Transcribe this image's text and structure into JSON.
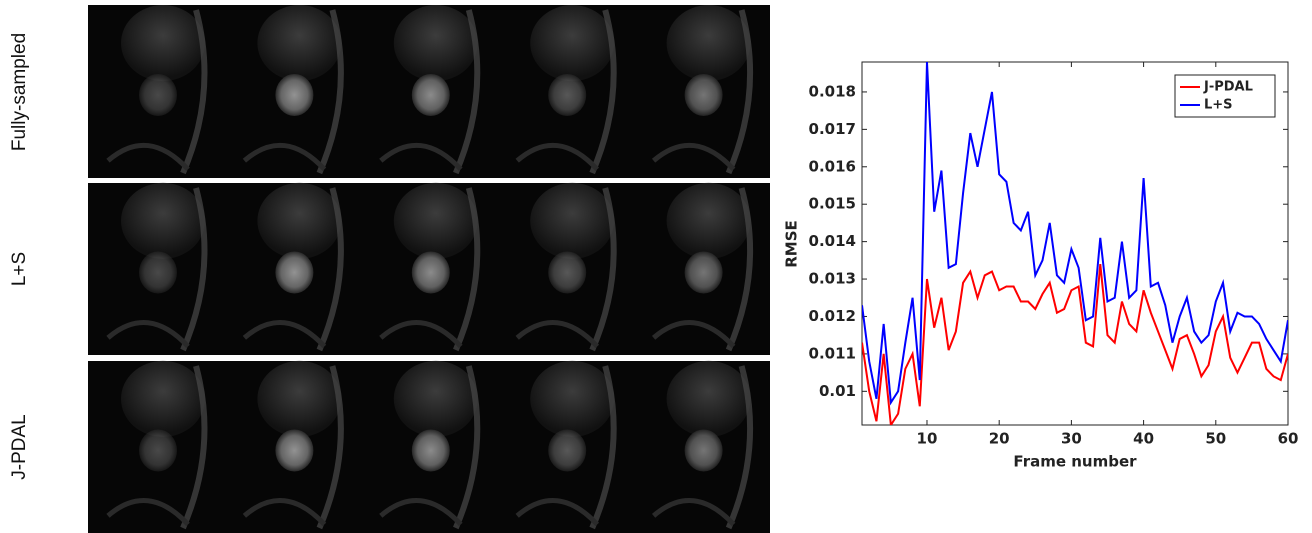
{
  "image_grid": {
    "row_labels": [
      "Fully-sampled",
      "L+S",
      "J-PDAL"
    ]
  },
  "chart_data": {
    "type": "line",
    "xlabel": "Frame number",
    "ylabel": "RMSE",
    "x": [
      1,
      2,
      3,
      4,
      5,
      6,
      7,
      8,
      9,
      10,
      11,
      12,
      13,
      14,
      15,
      16,
      17,
      18,
      19,
      20,
      21,
      22,
      23,
      24,
      25,
      26,
      27,
      28,
      29,
      30,
      31,
      32,
      33,
      34,
      35,
      36,
      37,
      38,
      39,
      40,
      41,
      42,
      43,
      44,
      45,
      46,
      47,
      48,
      49,
      50,
      51,
      52,
      53,
      54,
      55,
      56,
      57,
      58,
      59,
      60
    ],
    "series": [
      {
        "name": "J-PDAL",
        "color": "#ff0000",
        "values": [
          0.0113,
          0.01,
          0.0092,
          0.011,
          0.0091,
          0.0094,
          0.0106,
          0.011,
          0.0096,
          0.013,
          0.0117,
          0.0125,
          0.0111,
          0.0116,
          0.0129,
          0.0132,
          0.0125,
          0.0131,
          0.0132,
          0.0127,
          0.0128,
          0.0128,
          0.0124,
          0.0124,
          0.0122,
          0.0126,
          0.0129,
          0.0121,
          0.0122,
          0.0127,
          0.0128,
          0.0113,
          0.0112,
          0.0134,
          0.0115,
          0.0113,
          0.0124,
          0.0118,
          0.0116,
          0.0127,
          0.0121,
          0.0116,
          0.0111,
          0.0106,
          0.0114,
          0.0115,
          0.011,
          0.0104,
          0.0107,
          0.0116,
          0.012,
          0.0109,
          0.0105,
          0.0109,
          0.0113,
          0.0113,
          0.0106,
          0.0104,
          0.0103,
          0.011
        ]
      },
      {
        "name": "L+S",
        "color": "#0000ff",
        "values": [
          0.0123,
          0.0108,
          0.0098,
          0.0118,
          0.0097,
          0.01,
          0.0113,
          0.0125,
          0.0103,
          0.0188,
          0.0148,
          0.0159,
          0.0133,
          0.0134,
          0.0153,
          0.0169,
          0.016,
          0.017,
          0.018,
          0.0158,
          0.0156,
          0.0145,
          0.0143,
          0.0148,
          0.0131,
          0.0135,
          0.0145,
          0.0131,
          0.0129,
          0.0138,
          0.0133,
          0.0119,
          0.012,
          0.0141,
          0.0124,
          0.0125,
          0.014,
          0.0125,
          0.0127,
          0.0157,
          0.0128,
          0.0129,
          0.0123,
          0.0113,
          0.012,
          0.0125,
          0.0116,
          0.0113,
          0.0115,
          0.0124,
          0.0129,
          0.0116,
          0.0121,
          0.012,
          0.012,
          0.0118,
          0.0114,
          0.0111,
          0.0108,
          0.0119
        ]
      }
    ],
    "xlim": [
      1,
      60
    ],
    "xticks": [
      10,
      20,
      30,
      40,
      50,
      60
    ],
    "ylim": [
      0.0091,
      0.0188
    ],
    "yticks": [
      0.01,
      0.011,
      0.012,
      0.013,
      0.014,
      0.015,
      0.016,
      0.017,
      0.018
    ],
    "legend": "upper right"
  }
}
